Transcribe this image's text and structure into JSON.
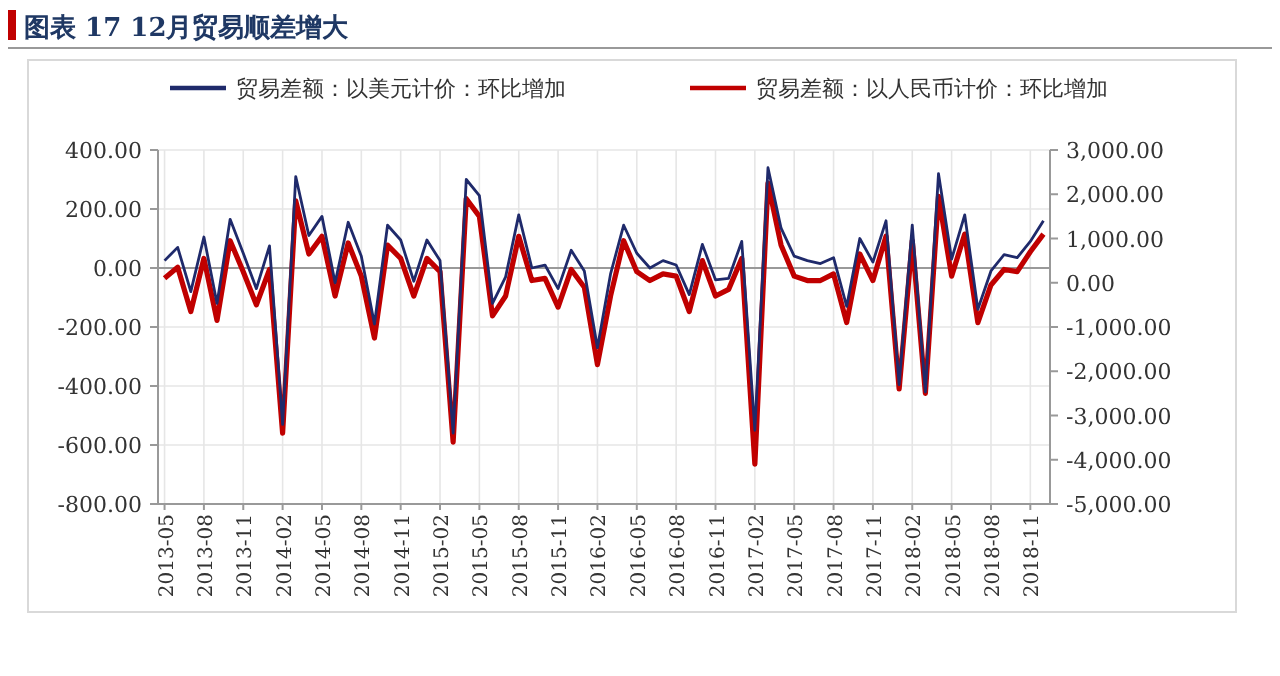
{
  "chart_data": {
    "type": "line",
    "title": "图表 17   12月贸易顺差增大",
    "categories": [
      "2013-05",
      null,
      null,
      "2013-08",
      null,
      null,
      "2013-11",
      null,
      null,
      "2014-02",
      null,
      null,
      "2014-05",
      null,
      null,
      "2014-08",
      null,
      null,
      "2014-11",
      null,
      null,
      "2015-02",
      null,
      null,
      "2015-05",
      null,
      null,
      "2015-08",
      null,
      null,
      "2015-11",
      null,
      null,
      "2016-02",
      null,
      null,
      "2016-05",
      null,
      null,
      "2016-08",
      null,
      null,
      "2016-11",
      null,
      null,
      "2017-02",
      null,
      null,
      "2017-05",
      null,
      null,
      "2017-08",
      null,
      null,
      "2017-11",
      null,
      null,
      "2018-02",
      null,
      null,
      "2018-05",
      null,
      null,
      "2018-08",
      null,
      null,
      "2018-11",
      null
    ],
    "series": [
      {
        "name": "贸易差额：以美元计价：环比增加",
        "color": "#1f2a6b",
        "values": [
          25,
          70,
          -80,
          105,
          -120,
          165,
          50,
          -70,
          75,
          -530,
          310,
          110,
          175,
          -50,
          155,
          40,
          -190,
          145,
          95,
          -45,
          95,
          25,
          -560,
          300,
          245,
          -120,
          -30,
          180,
          0,
          10,
          -70,
          60,
          -10,
          -270,
          -20,
          145,
          50,
          0,
          25,
          10,
          -90,
          80,
          -40,
          -35,
          90,
          -550,
          340,
          135,
          40,
          25,
          15,
          35,
          -130,
          100,
          20,
          160,
          -395,
          145,
          -420,
          320,
          30,
          180,
          -140,
          -10,
          45,
          35,
          90,
          160
        ]
      },
      {
        "name": "贸易差额：以人民币计价：环比增加",
        "color": "#c00000",
        "axis": "y2",
        "values": [
          100,
          350,
          -650,
          550,
          -850,
          950,
          250,
          -500,
          300,
          -3400,
          1850,
          650,
          1050,
          -300,
          900,
          150,
          -1250,
          850,
          550,
          -300,
          550,
          250,
          -3600,
          1900,
          1500,
          -750,
          -300,
          1050,
          50,
          100,
          -550,
          300,
          -100,
          -1850,
          -300,
          950,
          250,
          50,
          200,
          150,
          -650,
          500,
          -300,
          -150,
          550,
          -4100,
          2250,
          850,
          150,
          50,
          50,
          200,
          -900,
          650,
          50,
          1050,
          -2400,
          950,
          -2500,
          1950,
          150,
          1100,
          -900,
          -50,
          300,
          250,
          700,
          1100
        ]
      }
    ],
    "ylim": [
      -800,
      400
    ],
    "yticks": [
      {
        "value": -800,
        "label": "-800.00"
      },
      {
        "value": -600,
        "label": "-600.00"
      },
      {
        "value": -400,
        "label": "-400.00"
      },
      {
        "value": -200,
        "label": "-200.00"
      },
      {
        "value": 0,
        "label": "0.00"
      },
      {
        "value": 200,
        "label": "200.00"
      },
      {
        "value": 400,
        "label": "400.00"
      }
    ],
    "y2lim": [
      -5000,
      3000
    ],
    "y2ticks": [
      {
        "value": -5000,
        "label": "-5,000.00"
      },
      {
        "value": -4000,
        "label": "-4,000.00"
      },
      {
        "value": -3000,
        "label": "-3,000.00"
      },
      {
        "value": -2000,
        "label": "-2,000.00"
      },
      {
        "value": -1000,
        "label": "-1,000.00"
      },
      {
        "value": 0,
        "label": "0.00"
      },
      {
        "value": 1000,
        "label": "1,000.00"
      },
      {
        "value": 2000,
        "label": "2,000.00"
      },
      {
        "value": 3000,
        "label": "3,000.00"
      }
    ],
    "grid": true,
    "legend": "top"
  }
}
